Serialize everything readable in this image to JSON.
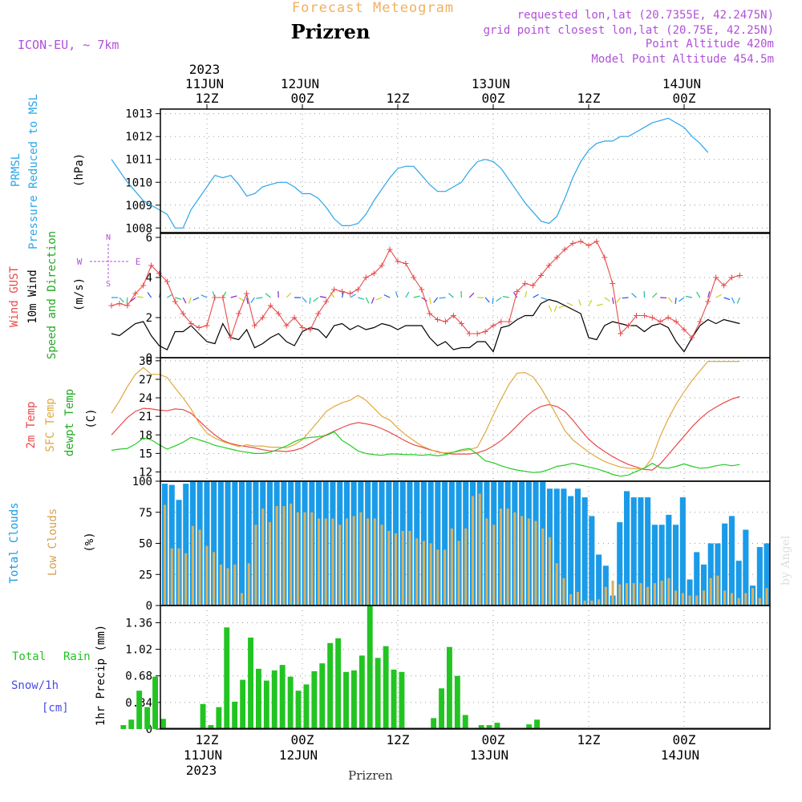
{
  "header": {
    "product": "Forecast Meteogram",
    "location": "Prizren",
    "model": "ICON-EU, ~ 7km",
    "requested_point": "requested lon,lat (20.7355E, 42.2475N)",
    "grid_point": "grid point closest lon,lat (20.75E, 42.25N)",
    "point_altitude": "Point Altitude 420m",
    "model_altitude": "Model Point Altitude 454.5m",
    "credit": "by Angel",
    "bottom_label": "Prizren"
  },
  "colors": {
    "pressure": "#2aa6e8",
    "gust": "#e84a4a",
    "wind": "#000000",
    "temp2m": "#e84a4a",
    "sfc_temp": "#e0a840",
    "dewpoint": "#22cc22",
    "total_clouds": "#1a9be8",
    "low_clouds": "#d9b060",
    "precip": "#22c422",
    "snow_label": "#4a4ae8",
    "header_purple": "#b050d8",
    "title_orange": "#f0b060"
  },
  "time_axis": {
    "top_year": "2023",
    "bottom_year": "2023",
    "ticks": [
      {
        "hour": 12,
        "top": "12Z",
        "date": "11JUN"
      },
      {
        "hour": 24,
        "top": "00Z",
        "date": "12JUN"
      },
      {
        "hour": 36,
        "top": "12Z",
        "date": ""
      },
      {
        "hour": 48,
        "top": "00Z",
        "date": "13JUN"
      },
      {
        "hour": 60,
        "top": "12Z",
        "date": ""
      },
      {
        "hour": 72,
        "top": "00Z",
        "date": "14JUN"
      }
    ]
  },
  "chart_data": [
    {
      "type": "line",
      "title": "PRMSL Pressure Reduced to MSL",
      "ylabel": "(hPa)",
      "ylim": [
        1007.8,
        1013.2
      ],
      "yticks": [
        1008,
        1009,
        1010,
        1011,
        1012,
        1013
      ],
      "grid": true,
      "x_start_hour": 0,
      "x_step_hours": 1,
      "series": [
        {
          "name": "PRMSL",
          "values": [
            1011.0,
            1010.5,
            1010.0,
            1009.6,
            1009.2,
            1009.0,
            1008.8,
            1008.6,
            1008.0,
            1008.0,
            1008.8,
            1009.3,
            1009.8,
            1010.3,
            1010.2,
            1010.3,
            1009.9,
            1009.4,
            1009.5,
            1009.8,
            1009.9,
            1010.0,
            1010.0,
            1009.8,
            1009.5,
            1009.5,
            1009.3,
            1008.9,
            1008.4,
            1008.1,
            1008.1,
            1008.2,
            1008.6,
            1009.2,
            1009.7,
            1010.2,
            1010.6,
            1010.7,
            1010.7,
            1010.3,
            1009.9,
            1009.6,
            1009.6,
            1009.8,
            1010.0,
            1010.5,
            1010.9,
            1011.0,
            1010.9,
            1010.6,
            1010.1,
            1009.6,
            1009.1,
            1008.7,
            1008.3,
            1008.2,
            1008.5,
            1009.3,
            1010.2,
            1010.9,
            1011.4,
            1011.7,
            1011.8,
            1011.8,
            1012.0,
            1012.0,
            1012.2,
            1012.4,
            1012.6,
            1012.7,
            1012.8,
            1012.6,
            1012.4,
            1012.0,
            1011.7,
            1011.3
          ]
        }
      ]
    },
    {
      "type": "line",
      "title": "Wind GUST / 10m Wind Speed and Direction",
      "ylabel": "(m/s)",
      "ylim": [
        0,
        6.2
      ],
      "yticks": [
        0,
        2,
        4,
        6
      ],
      "grid": true,
      "compass": {
        "north": "N",
        "south": "S",
        "west": "W",
        "east": "E"
      },
      "x_start_hour": 0,
      "x_step_hours": 1,
      "series": [
        {
          "name": "Wind GUST",
          "values": [
            2.6,
            2.7,
            2.6,
            3.2,
            3.6,
            4.6,
            4.2,
            3.8,
            2.8,
            2.2,
            1.7,
            1.5,
            1.6,
            3.0,
            3.0,
            1.0,
            2.2,
            3.2,
            1.6,
            2.0,
            2.6,
            2.2,
            1.6,
            2.0,
            1.5,
            1.4,
            2.2,
            2.8,
            3.4,
            3.3,
            3.2,
            3.4,
            4.0,
            4.2,
            4.6,
            5.4,
            4.8,
            4.7,
            4.0,
            3.4,
            2.2,
            1.9,
            1.8,
            2.1,
            1.7,
            1.2,
            1.2,
            1.3,
            1.6,
            1.8,
            1.8,
            3.3,
            3.7,
            3.6,
            4.1,
            4.6,
            5.0,
            5.4,
            5.7,
            5.8,
            5.6,
            5.8,
            5.0,
            3.7,
            1.2,
            1.6,
            2.1,
            2.1,
            2.0,
            1.8,
            2.0,
            1.8,
            1.4,
            1.0,
            1.8,
            2.8,
            4.0,
            3.6,
            4.0,
            4.1
          ]
        },
        {
          "name": "10m Wind",
          "values": [
            1.2,
            1.1,
            1.4,
            1.7,
            1.8,
            1.1,
            0.6,
            0.4,
            1.3,
            1.3,
            1.6,
            1.2,
            0.8,
            0.7,
            1.7,
            1.0,
            0.9,
            1.4,
            0.5,
            0.7,
            1.0,
            1.2,
            0.8,
            0.6,
            1.3,
            1.5,
            1.4,
            1.0,
            1.6,
            1.7,
            1.4,
            1.6,
            1.4,
            1.5,
            1.7,
            1.6,
            1.4,
            1.6,
            1.6,
            1.6,
            1.0,
            0.6,
            0.8,
            0.4,
            0.5,
            0.5,
            0.8,
            0.8,
            0.3,
            1.5,
            1.6,
            1.9,
            2.1,
            2.1,
            2.7,
            2.9,
            2.8,
            2.6,
            2.4,
            2.2,
            1.0,
            0.9,
            1.6,
            1.8,
            1.7,
            1.6,
            1.6,
            1.3,
            1.6,
            1.7,
            1.5,
            0.8,
            0.3,
            1.0,
            1.6,
            1.9,
            1.7,
            1.9,
            1.8,
            1.7
          ]
        },
        {
          "name": "Wind direction arrows",
          "values": [
            3,
            3,
            3,
            3,
            3,
            3,
            3,
            3,
            3,
            3,
            3,
            3,
            3,
            3,
            3,
            3,
            3,
            3,
            3,
            3,
            3,
            3,
            3,
            3,
            3,
            3,
            3,
            3,
            3,
            3,
            3,
            3,
            3,
            3,
            3,
            3,
            3,
            3,
            3,
            3,
            3,
            3,
            3,
            3,
            3,
            3,
            3,
            3,
            3,
            3,
            3,
            3,
            3,
            3,
            3,
            2.6,
            2.6,
            2.6,
            2.6,
            2.6,
            2.6,
            2.6,
            3,
            3,
            3,
            3,
            3,
            3,
            3,
            3,
            3,
            3,
            3,
            3,
            3,
            3,
            3,
            3,
            3,
            3
          ]
        }
      ]
    },
    {
      "type": "line",
      "title": "2m Temp / SFC Temp / dewpt Temp",
      "ylabel": "(C)",
      "ylim": [
        10.5,
        30.5
      ],
      "yticks": [
        12,
        15,
        18,
        21,
        24,
        27,
        30
      ],
      "grid": true,
      "x_start_hour": 0,
      "x_step_hours": 1,
      "series": [
        {
          "name": "2m Temp",
          "values": [
            18.0,
            19.4,
            20.8,
            21.8,
            22.3,
            22.2,
            22.0,
            21.9,
            22.2,
            22.1,
            21.5,
            20.3,
            19.1,
            18.0,
            17.1,
            16.6,
            16.3,
            16.1,
            15.9,
            15.6,
            15.4,
            15.4,
            15.3,
            15.5,
            15.9,
            16.6,
            17.3,
            18.0,
            18.6,
            19.2,
            19.7,
            20.0,
            19.8,
            19.5,
            19.0,
            18.4,
            17.7,
            17.0,
            16.4,
            16.0,
            15.6,
            15.3,
            15.0,
            14.9,
            14.9,
            14.9,
            15.1,
            15.5,
            16.2,
            17.1,
            18.2,
            19.5,
            20.8,
            21.9,
            22.6,
            22.9,
            22.6,
            21.8,
            20.4,
            18.8,
            17.3,
            16.2,
            15.3,
            14.5,
            13.8,
            13.2,
            12.8,
            12.4,
            12.3,
            13.3,
            14.8,
            16.3,
            17.8,
            19.3,
            20.6,
            21.7,
            22.5,
            23.2,
            23.8,
            24.2
          ]
        },
        {
          "name": "SFC Temp",
          "values": [
            21.5,
            23.5,
            25.8,
            27.8,
            28.9,
            27.8,
            27.8,
            27.3,
            25.6,
            24.0,
            22.2,
            19.9,
            18.3,
            17.5,
            16.9,
            16.5,
            16.1,
            16.4,
            16.2,
            16.2,
            16.0,
            16.0,
            15.9,
            16.4,
            17.2,
            18.7,
            20.2,
            21.8,
            22.6,
            23.2,
            23.6,
            24.4,
            23.6,
            22.3,
            21.0,
            20.4,
            19.1,
            18.0,
            17.1,
            16.2,
            15.7,
            15.2,
            15.1,
            15.2,
            15.4,
            15.6,
            16.0,
            18.4,
            21.2,
            23.8,
            26.2,
            28.0,
            28.1,
            27.4,
            25.6,
            23.4,
            21.1,
            18.7,
            17.2,
            16.2,
            15.2,
            14.4,
            13.7,
            13.2,
            12.8,
            12.6,
            12.5,
            12.6,
            14.3,
            17.8,
            20.6,
            23.0,
            25.0,
            26.8,
            28.4,
            29.9,
            29.9,
            29.9,
            29.9,
            29.9
          ]
        },
        {
          "name": "dewpt Temp",
          "values": [
            15.5,
            15.7,
            15.8,
            16.5,
            17.5,
            17.2,
            16.4,
            15.7,
            16.2,
            16.8,
            17.6,
            17.2,
            16.8,
            16.3,
            16.0,
            15.7,
            15.4,
            15.2,
            15.0,
            15.0,
            15.2,
            15.7,
            16.2,
            16.9,
            17.4,
            17.6,
            17.7,
            17.9,
            18.5,
            17.1,
            16.3,
            15.4,
            15.0,
            14.8,
            14.7,
            14.9,
            14.9,
            14.8,
            14.8,
            14.7,
            14.8,
            14.6,
            14.8,
            15.2,
            15.6,
            15.8,
            14.9,
            13.8,
            13.5,
            13.0,
            12.6,
            12.3,
            12.1,
            11.9,
            12.0,
            12.4,
            12.9,
            13.1,
            13.4,
            13.1,
            12.8,
            12.5,
            12.1,
            11.6,
            11.3,
            11.5,
            12.1,
            12.6,
            13.4,
            12.7,
            12.6,
            12.9,
            13.3,
            12.9,
            12.6,
            12.7,
            13.0,
            13.2,
            13.0,
            13.2
          ]
        }
      ]
    },
    {
      "type": "bar",
      "title": "Total Clouds / Low Clouds",
      "ylabel": "(%)",
      "ylim": [
        0,
        100
      ],
      "yticks": [
        0,
        25,
        50,
        75,
        100
      ],
      "grid": true,
      "x_start_hour": 0,
      "x_step_hours": 1,
      "series": [
        {
          "name": "Total Clouds",
          "values": [
            98,
            97,
            85,
            98,
            100,
            100,
            100,
            100,
            100,
            100,
            100,
            100,
            100,
            100,
            100,
            100,
            100,
            100,
            100,
            100,
            100,
            100,
            100,
            100,
            100,
            100,
            100,
            100,
            100,
            100,
            100,
            100,
            100,
            100,
            100,
            100,
            100,
            100,
            100,
            100,
            100,
            100,
            100,
            100,
            100,
            100,
            100,
            100,
            100,
            100,
            100,
            100,
            100,
            100,
            100,
            94,
            94,
            94,
            88,
            94,
            87,
            72,
            41,
            32,
            8,
            67,
            92,
            87,
            87,
            87,
            65,
            65,
            73,
            65,
            87,
            21,
            43,
            33,
            50,
            50,
            66,
            72,
            36,
            61,
            16,
            47,
            50
          ]
        },
        {
          "name": "Low Clouds",
          "values": [
            81,
            46,
            46,
            42,
            64,
            61,
            48,
            43,
            33,
            30,
            33,
            10,
            34,
            65,
            78,
            67,
            80,
            80,
            82,
            75,
            75,
            75,
            70,
            70,
            70,
            65,
            70,
            72,
            75,
            70,
            70,
            65,
            60,
            58,
            60,
            60,
            54,
            52,
            50,
            45,
            45,
            62,
            52,
            62,
            88,
            90,
            70,
            65,
            78,
            78,
            75,
            72,
            70,
            68,
            62,
            55,
            34,
            22,
            9,
            11,
            4,
            4,
            5,
            15,
            20,
            17,
            18,
            18,
            18,
            15,
            18,
            20,
            22,
            12,
            10,
            8,
            8,
            12,
            22,
            24,
            12,
            10,
            6,
            10,
            14,
            6,
            14
          ]
        }
      ]
    },
    {
      "type": "bar",
      "title": "Total Rain / Snow/1h [cm]",
      "ylabel": "1hr Precip (mm)",
      "ylim": [
        0,
        1.58
      ],
      "yticks": [
        0,
        0.34,
        0.68,
        1.02,
        1.36
      ],
      "ytick_labels": [
        "0",
        "0.34",
        "0.68",
        "1.02",
        "1.36"
      ],
      "grid": true,
      "x_start_hour": 0,
      "x_step_hours": 1,
      "series": [
        {
          "name": "Total Rain",
          "values": [
            0,
            0.05,
            0.12,
            0.49,
            0.28,
            0.67,
            0.13,
            0,
            0,
            0,
            0,
            0.32,
            0.05,
            0.28,
            1.3,
            0.35,
            0.63,
            1.17,
            0.77,
            0.62,
            0.75,
            0.82,
            0.67,
            0.49,
            0.57,
            0.74,
            0.84,
            1.1,
            1.16,
            0.73,
            0.75,
            0.94,
            1.58,
            0.91,
            1.06,
            0.76,
            0.73,
            0,
            0,
            0,
            0.14,
            0.52,
            1.05,
            0.68,
            0.18,
            0,
            0.05,
            0.05,
            0.08,
            0,
            0,
            0,
            0.06,
            0.12,
            0,
            0,
            0,
            0,
            0,
            0,
            0,
            0,
            0,
            0,
            0,
            0,
            0,
            0,
            0,
            0,
            0,
            0,
            0,
            0,
            0,
            0,
            0,
            0,
            0,
            0
          ]
        }
      ]
    }
  ],
  "panel_labels": {
    "pressure": {
      "line1": "PRMSL",
      "line2": "Pressure Reduced to MSL",
      "unit": "(hPa)"
    },
    "wind": {
      "line1": "Wind GUST",
      "line2": "10m Wind",
      "line3": "Speed and Direction",
      "unit": "(m/s)"
    },
    "temp": {
      "line1": "2m Temp",
      "line2": "SFC Temp",
      "line3": "dewpt Temp",
      "unit": "(C)"
    },
    "clouds": {
      "line1": "Total Clouds",
      "line2": "Low Clouds",
      "unit": "(%)"
    },
    "precip": {
      "line1": "Total",
      "line1b": "Rain",
      "line2": "Snow/1h",
      "line3": "[cm]",
      "unit": "1hr Precip (mm)"
    }
  }
}
